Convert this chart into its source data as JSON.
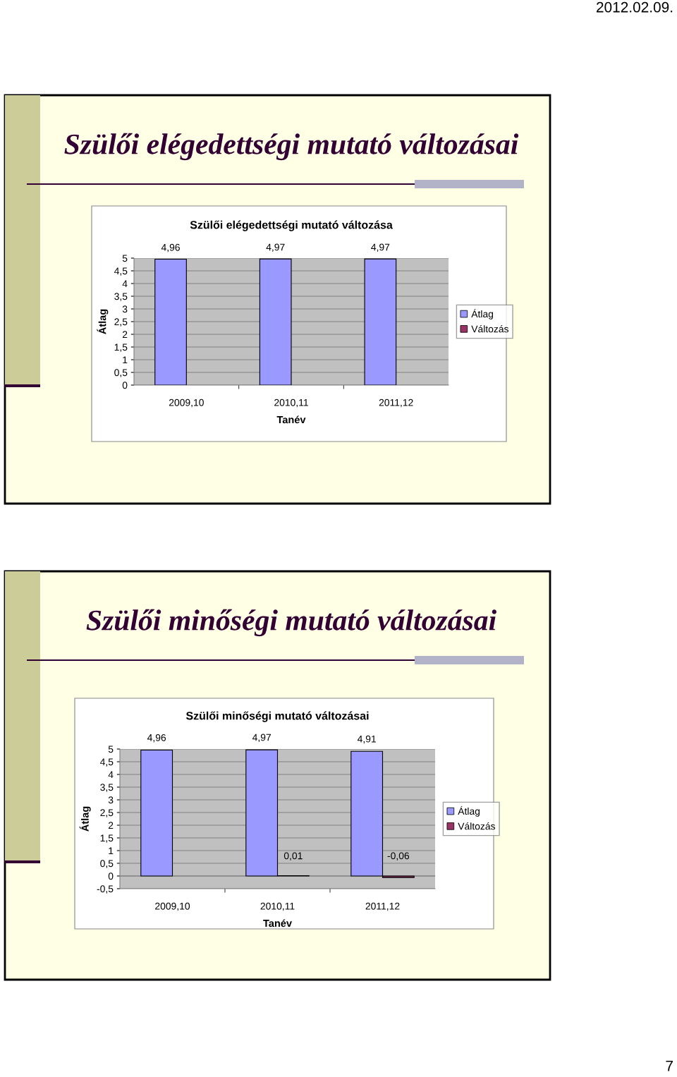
{
  "chart_data": [
    {
      "type": "bar",
      "title": "Szülői elégedettségi mutató változása",
      "xlabel": "Tanév",
      "ylabel": "Átlag",
      "annotations": [
        "2012.02.09.",
        "Szülői elégedettségi mutató változásai"
      ],
      "categories": [
        "2009,10",
        "2010,11",
        "2011,12"
      ],
      "series": [
        {
          "name": "Átlag",
          "color": "#9999ff",
          "values": [
            4.96,
            4.97,
            4.97
          ],
          "value_labels": [
            "4,96",
            "4,97",
            "4,97"
          ]
        },
        {
          "name": "Változás",
          "color": "#993366",
          "values": [
            null,
            null,
            null
          ]
        }
      ],
      "ylim": [
        0,
        5
      ],
      "yticks": [
        0,
        {
          "value": 0.5,
          "label": "0,5"
        },
        1,
        {
          "value": 1.5,
          "label": "1,5"
        },
        2,
        {
          "value": 2.5,
          "label": "2,5"
        },
        3,
        {
          "value": 3.5,
          "label": "3,5"
        },
        4,
        {
          "value": 4.5,
          "label": "4,5"
        },
        5
      ],
      "grid": "y",
      "legend": "right"
    },
    {
      "type": "bar",
      "title": "Szülői minőségi mutató változásai",
      "xlabel": "Tanév",
      "ylabel": "Átlag",
      "annotations": [
        "Szülői minőségi mutató változásai",
        "7"
      ],
      "categories": [
        "2009,10",
        "2010,11",
        "2011,12"
      ],
      "series": [
        {
          "name": "Átlag",
          "color": "#9999ff",
          "values": [
            4.96,
            4.97,
            4.91
          ],
          "value_labels": [
            "4,96",
            "4,97",
            "4,91"
          ]
        },
        {
          "name": "Változás",
          "color": "#993366",
          "values": [
            null,
            0.01,
            -0.06
          ],
          "value_labels": [
            null,
            "0,01",
            "-0,06"
          ]
        }
      ],
      "ylim": [
        -0.5,
        5
      ],
      "yticks": [
        {
          "value": -0.5,
          "label": "-0,5"
        },
        0,
        {
          "value": 0.5,
          "label": "0,5"
        },
        1,
        {
          "value": 1.5,
          "label": "1,5"
        },
        2,
        {
          "value": 2.5,
          "label": "2,5"
        },
        3,
        {
          "value": 3.5,
          "label": "3,5"
        },
        4,
        {
          "value": 4.5,
          "label": "4,5"
        },
        5
      ],
      "grid": "y",
      "legend": "right"
    }
  ]
}
